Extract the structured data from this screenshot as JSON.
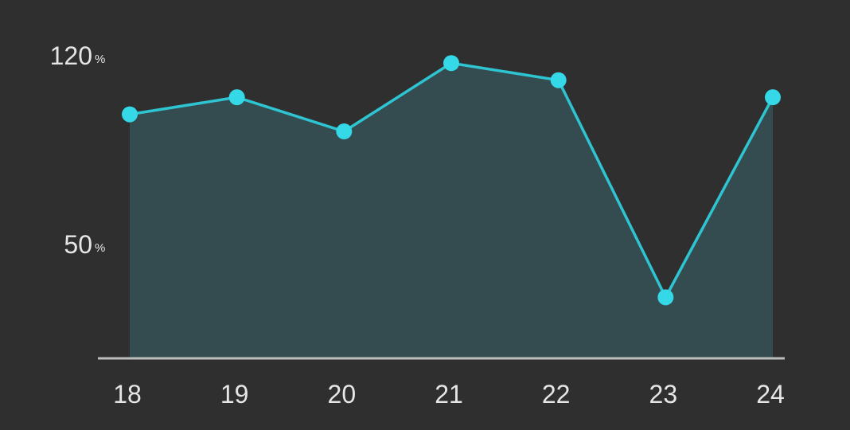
{
  "chart_data": {
    "type": "area",
    "title": "",
    "xlabel": "",
    "ylabel": "",
    "x": [
      "18",
      "19",
      "20",
      "21",
      "22",
      "23",
      "24"
    ],
    "values": [
      100,
      107,
      93,
      121,
      114,
      25,
      107
    ],
    "y_ticks": [
      {
        "value": 120,
        "label": "120",
        "unit": "%"
      },
      {
        "value": 50,
        "label": "50",
        "unit": "%"
      }
    ],
    "ylim": [
      15,
      125
    ],
    "grid": false,
    "legend": "none",
    "colors": {
      "background": "#2f2f2f",
      "line": "#2ec4d1",
      "marker": "#34d8e6",
      "fill": "#344b4f",
      "axis": "#bdbdbd",
      "text": "#e6e6e6"
    }
  }
}
